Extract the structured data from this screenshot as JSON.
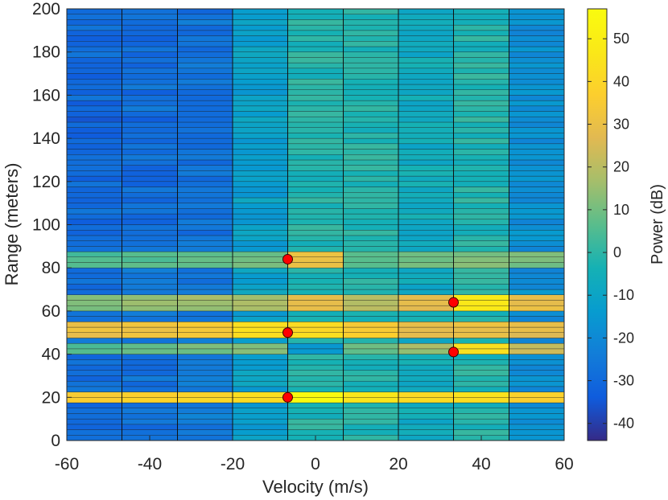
{
  "chart_data": {
    "type": "heatmap",
    "title": "",
    "xlabel": "Velocity (m/s)",
    "ylabel": "Range (meters)",
    "colorbar_label": "Power (dB)",
    "xlim": [
      -60,
      60
    ],
    "ylim": [
      0,
      200
    ],
    "clim": [
      -44,
      57
    ],
    "x_ticks": [
      -60,
      -40,
      -20,
      0,
      20,
      40,
      60
    ],
    "y_ticks": [
      0,
      20,
      40,
      60,
      80,
      100,
      120,
      140,
      160,
      180,
      200
    ],
    "colorbar_ticks": [
      -40,
      -30,
      -20,
      -10,
      0,
      10,
      20,
      30,
      40,
      50
    ],
    "velocity_bin_edges": [
      -60,
      -46.7,
      -33.3,
      -20,
      -6.7,
      6.7,
      20,
      33.3,
      46.7,
      60
    ],
    "range_bin_size": 2.5,
    "column_base_power_db": [
      -28,
      -27,
      -25,
      -12,
      -2,
      -2,
      -7,
      -2,
      -18
    ],
    "bright_bands": [
      {
        "range": [
          18.5,
          22.5
        ],
        "power_db": [
          36,
          38,
          40,
          42,
          57,
          45,
          42,
          44,
          36
        ]
      },
      {
        "range": [
          47.5,
          55
        ],
        "power_db": [
          30,
          32,
          34,
          44,
          42,
          36,
          30,
          30,
          28
        ]
      },
      {
        "range": [
          60,
          67.5
        ],
        "power_db": [
          12,
          14,
          16,
          18,
          30,
          20,
          28,
          48,
          30
        ]
      },
      {
        "range": [
          40,
          45
        ],
        "power_db": [
          6,
          8,
          10,
          12,
          -16,
          8,
          16,
          42,
          22
        ]
      },
      {
        "range": [
          80,
          87.5
        ],
        "power_db": [
          4,
          6,
          8,
          10,
          32,
          8,
          10,
          12,
          10
        ]
      }
    ],
    "detections": [
      {
        "velocity": -6.7,
        "range": 84
      },
      {
        "velocity": -6.7,
        "range": 50
      },
      {
        "velocity": -6.7,
        "range": 20
      },
      {
        "velocity": 33.3,
        "range": 64
      },
      {
        "velocity": 33.3,
        "range": 41
      }
    ],
    "marker_color": "#ff0000",
    "colormap": "parula"
  }
}
